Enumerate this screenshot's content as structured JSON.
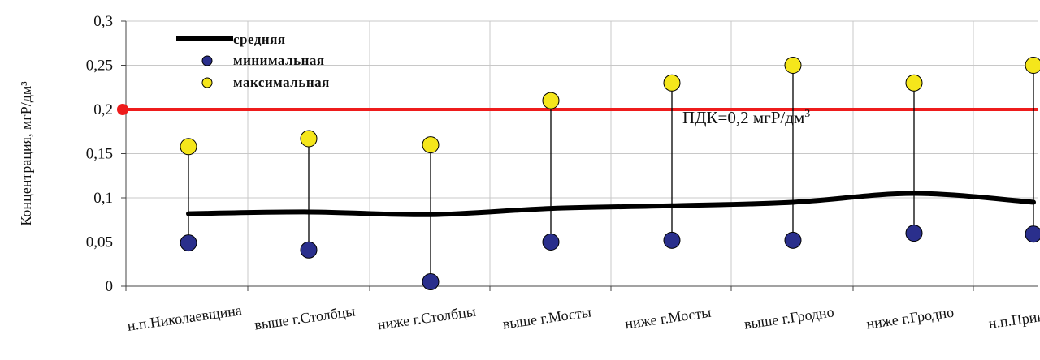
{
  "chart_data": {
    "type": "line",
    "title": "",
    "xlabel": "",
    "ylabel": "Концентрация, мгР/дм³",
    "ylim": [
      0,
      0.3
    ],
    "yticks": [
      "0",
      "0,05",
      "0,1",
      "0,15",
      "0,2",
      "0,25",
      "0,3"
    ],
    "grid": true,
    "legend_position": "top-left",
    "categories": [
      "н.п.Николаевщина",
      "выше г.Столбцы",
      "ниже г.Столбцы",
      "выше г.Мосты",
      "ниже г.Мосты",
      "выше г.Гродно",
      "ниже г.Гродно",
      "н.п.Привалка"
    ],
    "series": [
      {
        "name": "средняя",
        "type": "line",
        "color": "#000000",
        "values": [
          0.082,
          0.084,
          0.081,
          0.088,
          0.091,
          0.095,
          0.105,
          0.095
        ]
      },
      {
        "name": "минимальная",
        "type": "scatter",
        "color": "#2a2f8c",
        "values": [
          0.049,
          0.041,
          0.005,
          0.05,
          0.052,
          0.052,
          0.06,
          0.059
        ]
      },
      {
        "name": "максимальная",
        "type": "scatter",
        "color": "#f5e61b",
        "values": [
          0.158,
          0.167,
          0.16,
          0.21,
          0.23,
          0.25,
          0.23,
          0.25
        ]
      }
    ],
    "reference_line": {
      "value": 0.2,
      "label": "ПДК=0,2 мгР/дм",
      "label_sup": "3",
      "color": "#ee1c1c"
    }
  }
}
